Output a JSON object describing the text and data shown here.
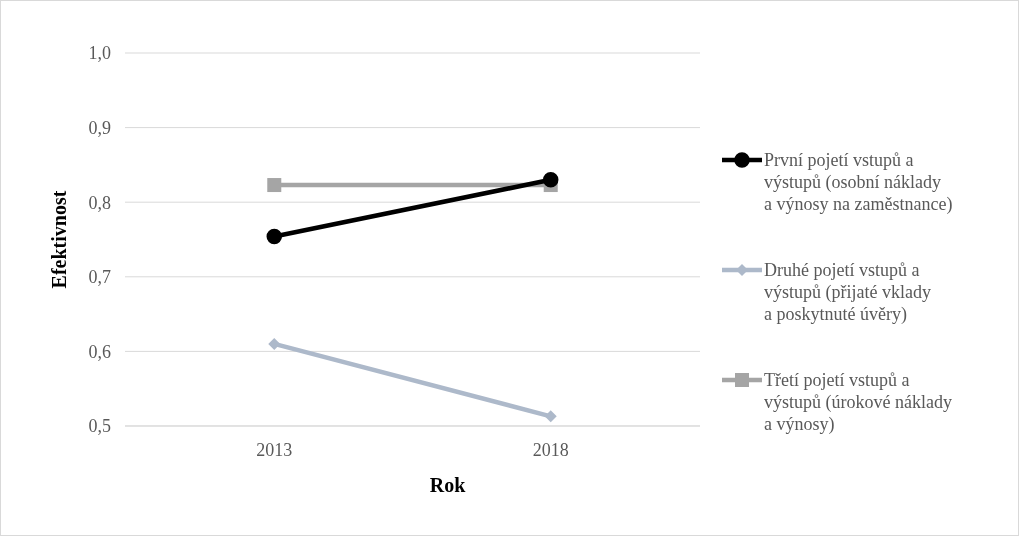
{
  "chart_data": {
    "type": "line",
    "xlabel": "Rok",
    "ylabel": "Efektivnost",
    "categories": [
      "2013",
      "2018"
    ],
    "series": [
      {
        "name": "První pojetí vstupů a výstupů (osobní náklady a výnosy na zaměstnance)",
        "color": "#000000",
        "marker": "circle",
        "values": [
          0.754,
          0.83
        ]
      },
      {
        "name": "Druhé pojetí vstupů a výstupů (přijaté vklady a poskytnuté úvěry)",
        "color": "#adb9ca",
        "marker": "diamond",
        "values": [
          0.61,
          0.513
        ]
      },
      {
        "name": "Třetí pojetí vstupů a výstupů (úrokové náklady a výnosy)",
        "color": "#a5a5a5",
        "marker": "square",
        "values": [
          0.823,
          0.823
        ]
      }
    ],
    "ylim": [
      0.5,
      1.0
    ],
    "yticks": [
      {
        "value": 0.5,
        "label": "0,5"
      },
      {
        "value": 0.6,
        "label": "0,6"
      },
      {
        "value": 0.7,
        "label": "0,7"
      },
      {
        "value": 0.8,
        "label": "0,8"
      },
      {
        "value": 0.9,
        "label": "0,9"
      },
      {
        "value": 1.0,
        "label": "1,0"
      }
    ],
    "grid": "y",
    "legend": "right"
  }
}
